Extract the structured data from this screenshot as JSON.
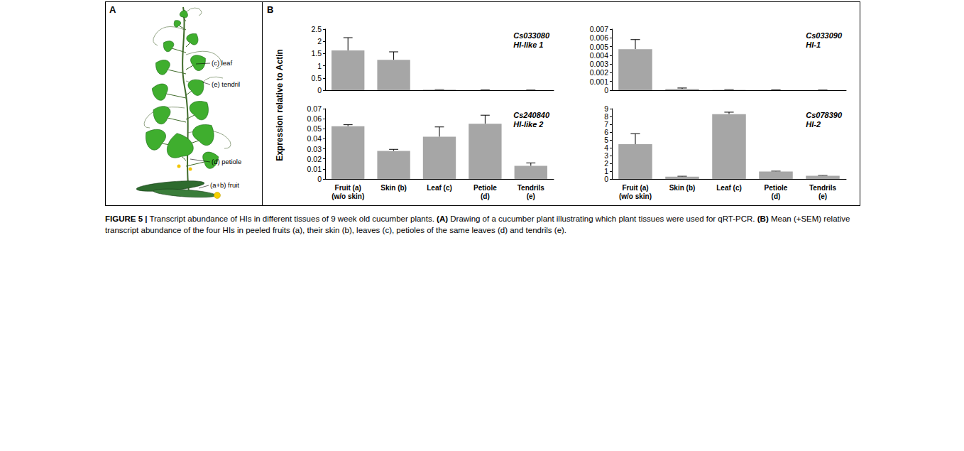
{
  "figure": {
    "panels": [
      {
        "letter": "A",
        "labels": [
          "(c) leaf",
          "(e) tendril",
          "(d) petiole",
          "(a+b) fruit"
        ]
      },
      {
        "letter": "B",
        "ylabel": "Expression relative to Actin"
      }
    ],
    "caption": {
      "label": "FIGURE 5 |",
      "parts": [
        " Transcript abundance of HIs in different tissues of 9 week old cucumber plants. ",
        "(A)",
        " Drawing of a cucumber plant illustrating which plant tissues were used for qRT-PCR. ",
        "(B)",
        " Mean (+SEM) relative transcript abundance of the four HIs in peeled fruits (a), their skin (b), leaves (c), petioles of the same leaves (d) and tendrils (e)."
      ]
    }
  },
  "chart_data": [
    {
      "type": "bar",
      "title": "Cs033080",
      "subtitle": "HI-like 1",
      "categories": [
        "Fruit (a)\n(w/o skin)",
        "Skin (b)",
        "Leaf (c)",
        "Petiole\n(d)",
        "Tendrils\n(e)"
      ],
      "values": [
        1.63,
        1.24,
        0.02,
        0.01,
        0.005
      ],
      "errors": [
        0.52,
        0.33,
        0.005,
        0.003,
        0.003
      ],
      "color": "#a6a6a6",
      "ylim": [
        0,
        2.5
      ],
      "yticks": [
        0,
        0.5,
        1,
        1.5,
        2,
        2.5
      ],
      "grid": false,
      "tick_labels": "y"
    },
    {
      "type": "bar",
      "title": "Cs033090",
      "subtitle": "HI-1",
      "categories": [
        "Fruit (a)\n(w/o skin)",
        "Skin (b)",
        "Leaf (c)",
        "Petiole\n(d)",
        "Tendrils\n(e)"
      ],
      "values": [
        0.0047,
        0.00015,
        5e-05,
        3e-05,
        1e-05
      ],
      "errors": [
        0.0011,
        0.0001,
        2e-05,
        1e-05,
        5e-06
      ],
      "color": "#a6a6a6",
      "ylim": [
        0,
        0.007
      ],
      "yticks": [
        0,
        0.001,
        0.002,
        0.003,
        0.004,
        0.005,
        0.006,
        0.007
      ],
      "grid": false,
      "tick_labels": "y"
    },
    {
      "type": "bar",
      "title": "Cs240840",
      "subtitle": "HI-like 2",
      "categories": [
        "Fruit (a)\n(w/o skin)",
        "Skin (b)",
        "Leaf (c)",
        "Petiole\n(d)",
        "Tendrils\n(e)"
      ],
      "values": [
        0.0525,
        0.028,
        0.042,
        0.055,
        0.013
      ],
      "errors": [
        0.0015,
        0.0015,
        0.0098,
        0.0085,
        0.003
      ],
      "color": "#a6a6a6",
      "ylim": [
        0,
        0.07
      ],
      "yticks": [
        0,
        0.01,
        0.02,
        0.03,
        0.04,
        0.05,
        0.06,
        0.07
      ],
      "grid": false
    },
    {
      "type": "bar",
      "title": "Cs078390",
      "subtitle": "HI-2",
      "categories": [
        "Fruit (a)\n(w/o skin)",
        "Skin (b)",
        "Leaf (c)",
        "Petiole\n(d)",
        "Tendrils\n(e)"
      ],
      "values": [
        4.45,
        0.3,
        8.3,
        0.95,
        0.4
      ],
      "errors": [
        1.35,
        0.05,
        0.25,
        0.05,
        0.05
      ],
      "color": "#a6a6a6",
      "ylim": [
        0,
        9
      ],
      "yticks": [
        0,
        1,
        2,
        3,
        4,
        5,
        6,
        7,
        8,
        9
      ],
      "grid": false
    }
  ]
}
